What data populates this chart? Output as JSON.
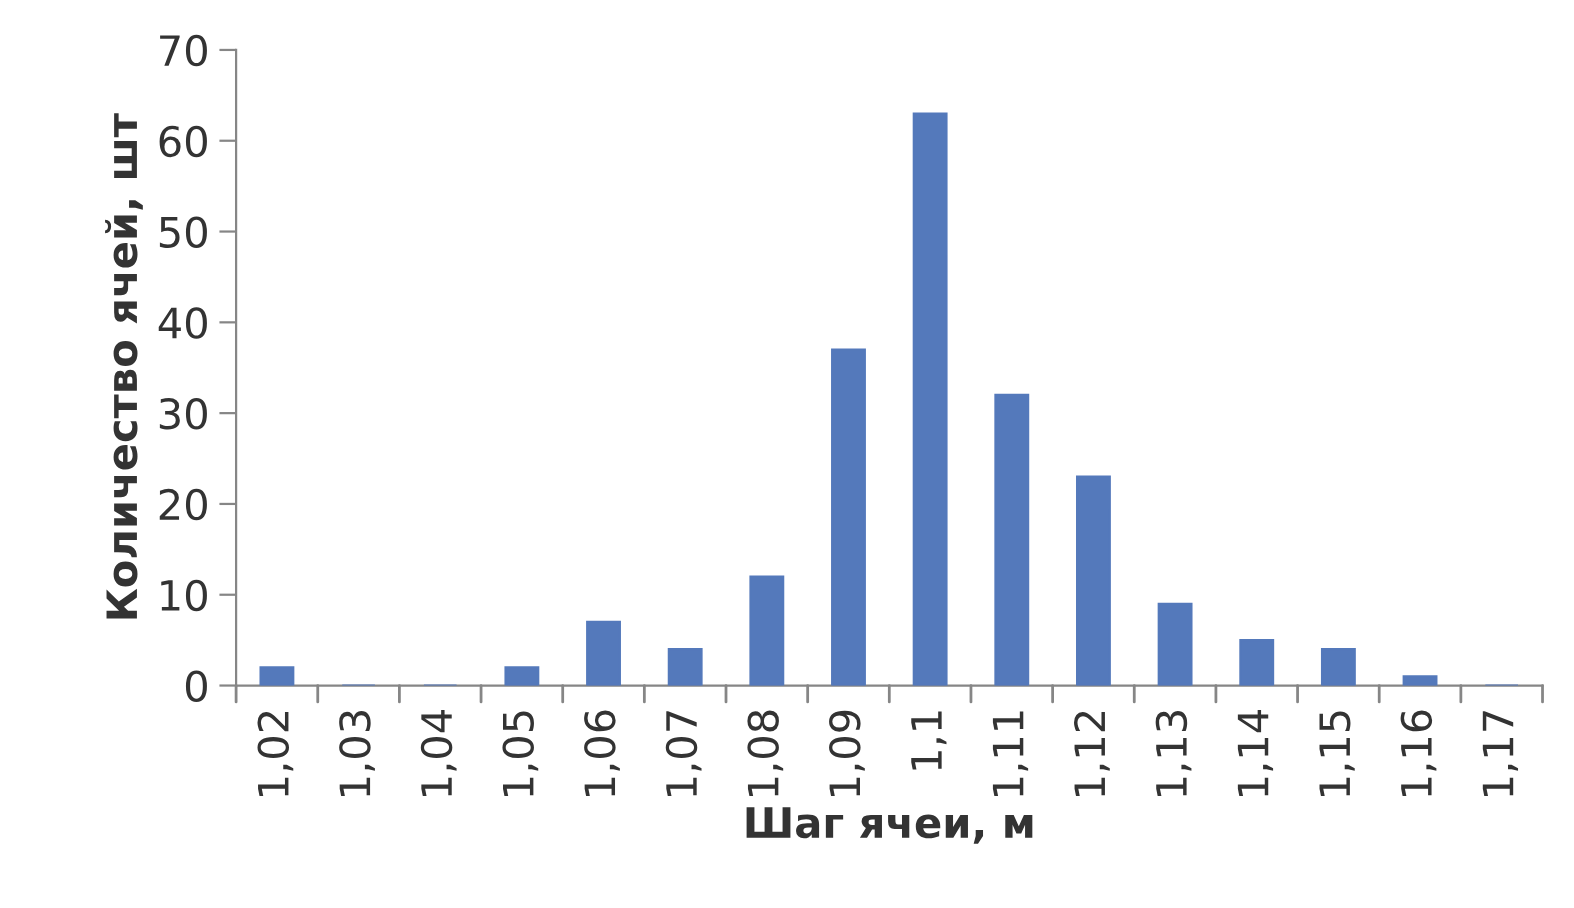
{
  "chart_data": {
    "type": "bar",
    "xlabel": "Шаг ячеи, м",
    "ylabel": "Количество ячей, шт",
    "categories": [
      "1,02",
      "1,03",
      "1,04",
      "1,05",
      "1,06",
      "1,07",
      "1,08",
      "1,09",
      "1,1",
      "1,11",
      "1,12",
      "1,13",
      "1,14",
      "1,15",
      "1,16",
      "1,17"
    ],
    "values": [
      2,
      0,
      0,
      2,
      7,
      4,
      12,
      37,
      63,
      32,
      23,
      9,
      5,
      4,
      1,
      0
    ],
    "color": "#5479bb",
    "ylim": [
      0,
      70
    ],
    "yticks": [
      0,
      10,
      20,
      30,
      40,
      50,
      60,
      70
    ],
    "grid": false,
    "legend": false
  }
}
